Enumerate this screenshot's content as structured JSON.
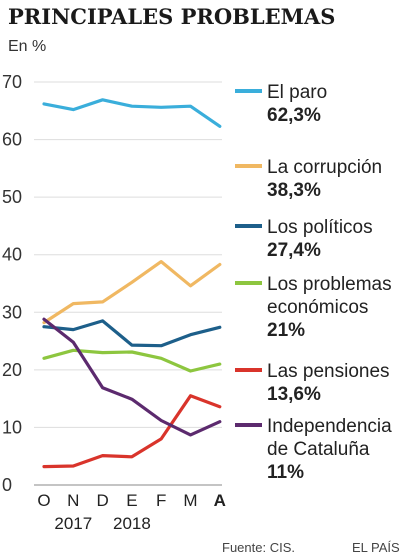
{
  "title": "PRINCIPALES PROBLEMAS",
  "unit": "En %",
  "source": "Fuente: CIS.",
  "publisher": "EL PAÍS",
  "chart_data": {
    "type": "line",
    "x": [
      "O",
      "N",
      "D",
      "E",
      "F",
      "M",
      "A"
    ],
    "x_emphasis": "A",
    "year_labels": [
      {
        "label": "2017",
        "at": "N"
      },
      {
        "label": "2018",
        "at": "E"
      }
    ],
    "yticks": [
      0,
      10,
      20,
      30,
      40,
      50,
      60,
      70
    ],
    "ylim": [
      0,
      70
    ],
    "grid": "horizontal",
    "legend": "right",
    "series": [
      {
        "name": "El paro",
        "value_label": "62,3%",
        "color": "#3aaedb",
        "values": [
          66.2,
          65.2,
          66.9,
          65.8,
          65.6,
          65.8,
          62.3
        ]
      },
      {
        "name": "La corrupción",
        "value_label": "38,3%",
        "color": "#f0b862",
        "values": [
          28.2,
          31.5,
          31.8,
          35.2,
          38.8,
          34.6,
          38.3
        ]
      },
      {
        "name": "Los políticos",
        "value_label": "27,4%",
        "color": "#1d5f8a",
        "values": [
          27.5,
          27.0,
          28.5,
          24.3,
          24.2,
          26.1,
          27.4
        ]
      },
      {
        "name_lines": [
          "Los problemas",
          "económicos"
        ],
        "value_label": "21%",
        "color": "#8dc63f",
        "values": [
          22.0,
          23.4,
          23.0,
          23.1,
          22.0,
          19.8,
          21.0
        ]
      },
      {
        "name": "Las pensiones",
        "value_label": "13,6%",
        "color": "#d9342b",
        "values": [
          3.2,
          3.3,
          5.1,
          4.9,
          8.0,
          15.5,
          13.6
        ]
      },
      {
        "name_lines": [
          "Independencia",
          "de Cataluña"
        ],
        "value_label": "11%",
        "color": "#5c2a6e",
        "values": [
          28.8,
          24.8,
          16.9,
          14.9,
          11.2,
          8.7,
          11.0
        ]
      }
    ]
  }
}
